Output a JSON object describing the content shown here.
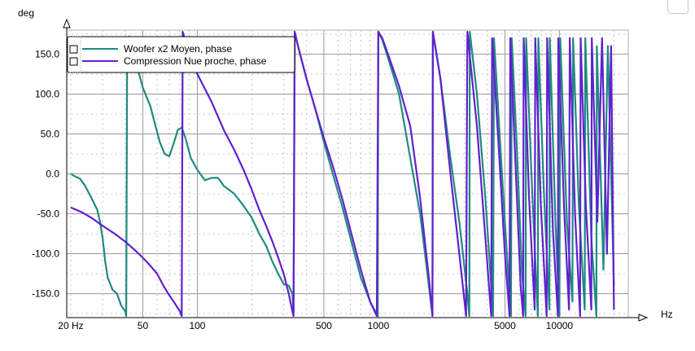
{
  "chart_data": {
    "type": "line",
    "title": "",
    "xlabel": "Hz",
    "ylabel": "deg",
    "xscale": "log",
    "xlim": [
      19,
      24000
    ],
    "ylim": [
      -180,
      180
    ],
    "grid": true,
    "legend_position": "top-left",
    "x_tick_labels": [
      {
        "value": 20,
        "label": "20 Hz"
      },
      {
        "value": 50,
        "label": "50"
      },
      {
        "value": 100,
        "label": "100"
      },
      {
        "value": 500,
        "label": "500"
      },
      {
        "value": 1000,
        "label": "1000"
      },
      {
        "value": 5000,
        "label": "5000"
      },
      {
        "value": 10000,
        "label": "10000"
      }
    ],
    "y_tick_labels": [
      {
        "value": 150,
        "label": "150.0"
      },
      {
        "value": 100,
        "label": "100.0"
      },
      {
        "value": 50,
        "label": "50.0"
      },
      {
        "value": 0,
        "label": "0.0"
      },
      {
        "value": -50,
        "label": "-50.0"
      },
      {
        "value": -100,
        "label": "-100.0"
      },
      {
        "value": -150,
        "label": "-150.0"
      }
    ],
    "series": [
      {
        "name": "Woofer x2 Moyen, phase",
        "color": "#1f8a80",
        "points": [
          [
            20,
            0
          ],
          [
            21,
            -3
          ],
          [
            22.5,
            -6
          ],
          [
            24,
            -15
          ],
          [
            26,
            -30
          ],
          [
            28,
            -45
          ],
          [
            29,
            -60
          ],
          [
            30,
            -80
          ],
          [
            31,
            -110
          ],
          [
            32,
            -130
          ],
          [
            34,
            -145
          ],
          [
            36,
            -150
          ],
          [
            38,
            -165
          ],
          [
            40,
            -172
          ],
          [
            40.5,
            -178
          ],
          [
            41,
            170
          ],
          [
            42,
            172
          ],
          [
            44,
            150
          ],
          [
            47,
            130
          ],
          [
            50,
            108
          ],
          [
            55,
            85
          ],
          [
            58,
            65
          ],
          [
            62,
            40
          ],
          [
            66,
            25
          ],
          [
            70,
            22
          ],
          [
            74,
            38
          ],
          [
            78,
            55
          ],
          [
            82,
            58
          ],
          [
            86,
            45
          ],
          [
            92,
            20
          ],
          [
            100,
            5
          ],
          [
            110,
            -8
          ],
          [
            120,
            -5
          ],
          [
            130,
            -5
          ],
          [
            140,
            -15
          ],
          [
            160,
            -25
          ],
          [
            180,
            -40
          ],
          [
            200,
            -55
          ],
          [
            220,
            -75
          ],
          [
            240,
            -90
          ],
          [
            260,
            -110
          ],
          [
            280,
            -125
          ],
          [
            300,
            -138
          ],
          [
            320,
            -140
          ],
          [
            335,
            -150
          ],
          [
            340,
            -172
          ],
          [
            345,
            178
          ],
          [
            360,
            160
          ],
          [
            400,
            120
          ],
          [
            450,
            80
          ],
          [
            500,
            40
          ],
          [
            560,
            0
          ],
          [
            630,
            -40
          ],
          [
            700,
            -80
          ],
          [
            800,
            -130
          ],
          [
            900,
            -160
          ],
          [
            990,
            -178
          ],
          [
            1000,
            178
          ],
          [
            1050,
            168
          ],
          [
            1150,
            140
          ],
          [
            1300,
            100
          ],
          [
            1500,
            20
          ],
          [
            1700,
            -50
          ],
          [
            1900,
            -140
          ],
          [
            1990,
            -178
          ],
          [
            2000,
            178
          ],
          [
            2200,
            120
          ],
          [
            2500,
            20
          ],
          [
            2800,
            -60
          ],
          [
            3100,
            -150
          ],
          [
            3180,
            -178
          ],
          [
            3200,
            178
          ],
          [
            3500,
            100
          ],
          [
            3900,
            -30
          ],
          [
            4200,
            -140
          ],
          [
            4300,
            -178
          ],
          [
            4350,
            170
          ],
          [
            4700,
            40
          ],
          [
            5000,
            -60
          ],
          [
            5400,
            -178
          ],
          [
            5450,
            170
          ],
          [
            5800,
            40
          ],
          [
            6200,
            -120
          ],
          [
            6500,
            -178
          ],
          [
            6550,
            170
          ],
          [
            7000,
            0
          ],
          [
            7500,
            -150
          ],
          [
            7600,
            -178
          ],
          [
            7650,
            170
          ],
          [
            8200,
            -20
          ],
          [
            8800,
            -170
          ],
          [
            8850,
            170
          ],
          [
            9500,
            -60
          ],
          [
            10000,
            -178
          ],
          [
            10100,
            170
          ],
          [
            11000,
            -60
          ],
          [
            11800,
            -160
          ],
          [
            11900,
            170
          ],
          [
            12800,
            -40
          ],
          [
            13800,
            -170
          ],
          [
            13900,
            170
          ],
          [
            15000,
            -80
          ],
          [
            16000,
            -178
          ],
          [
            16100,
            160
          ],
          [
            17500,
            -120
          ],
          [
            18500,
            160
          ],
          [
            20000,
            -140
          ]
        ]
      },
      {
        "name": "Compression Nue proche, phase",
        "color": "#6020d0",
        "points": [
          [
            20,
            -42
          ],
          [
            23,
            -48
          ],
          [
            26,
            -55
          ],
          [
            30,
            -65
          ],
          [
            35,
            -75
          ],
          [
            40,
            -85
          ],
          [
            45,
            -95
          ],
          [
            50,
            -105
          ],
          [
            55,
            -115
          ],
          [
            60,
            -125
          ],
          [
            65,
            -140
          ],
          [
            70,
            -152
          ],
          [
            75,
            -162
          ],
          [
            80,
            -172
          ],
          [
            82,
            -178
          ],
          [
            83,
            178
          ],
          [
            85,
            170
          ],
          [
            90,
            150
          ],
          [
            100,
            125
          ],
          [
            120,
            90
          ],
          [
            140,
            55
          ],
          [
            160,
            30
          ],
          [
            180,
            5
          ],
          [
            200,
            -20
          ],
          [
            220,
            -45
          ],
          [
            240,
            -65
          ],
          [
            260,
            -85
          ],
          [
            280,
            -105
          ],
          [
            300,
            -125
          ],
          [
            320,
            -150
          ],
          [
            335,
            -172
          ],
          [
            340,
            -178
          ],
          [
            345,
            178
          ],
          [
            360,
            160
          ],
          [
            400,
            120
          ],
          [
            450,
            80
          ],
          [
            500,
            45
          ],
          [
            560,
            10
          ],
          [
            630,
            -30
          ],
          [
            700,
            -70
          ],
          [
            800,
            -120
          ],
          [
            900,
            -160
          ],
          [
            980,
            -178
          ],
          [
            1000,
            178
          ],
          [
            1050,
            170
          ],
          [
            1150,
            145
          ],
          [
            1300,
            110
          ],
          [
            1500,
            60
          ],
          [
            1700,
            -30
          ],
          [
            1900,
            -130
          ],
          [
            1990,
            -178
          ],
          [
            2000,
            178
          ],
          [
            2200,
            120
          ],
          [
            2500,
            0
          ],
          [
            2800,
            -100
          ],
          [
            3050,
            -178
          ],
          [
            3100,
            178
          ],
          [
            3500,
            60
          ],
          [
            3900,
            -80
          ],
          [
            4200,
            -178
          ],
          [
            4250,
            170
          ],
          [
            4600,
            40
          ],
          [
            5000,
            -100
          ],
          [
            5300,
            -178
          ],
          [
            5350,
            170
          ],
          [
            5700,
            20
          ],
          [
            6100,
            -140
          ],
          [
            6300,
            -178
          ],
          [
            6350,
            170
          ],
          [
            6800,
            -30
          ],
          [
            7300,
            -170
          ],
          [
            7350,
            170
          ],
          [
            7900,
            -40
          ],
          [
            8500,
            -178
          ],
          [
            8550,
            170
          ],
          [
            9200,
            -70
          ],
          [
            9800,
            -178
          ],
          [
            9850,
            170
          ],
          [
            10600,
            -40
          ],
          [
            11300,
            -170
          ],
          [
            11400,
            170
          ],
          [
            12200,
            -50
          ],
          [
            13000,
            -178
          ],
          [
            13100,
            170
          ],
          [
            14000,
            -40
          ],
          [
            15000,
            -170
          ],
          [
            15100,
            170
          ],
          [
            16200,
            -60
          ],
          [
            17200,
            170
          ],
          [
            18300,
            -100
          ],
          [
            19300,
            160
          ],
          [
            20000,
            -170
          ]
        ]
      }
    ]
  }
}
